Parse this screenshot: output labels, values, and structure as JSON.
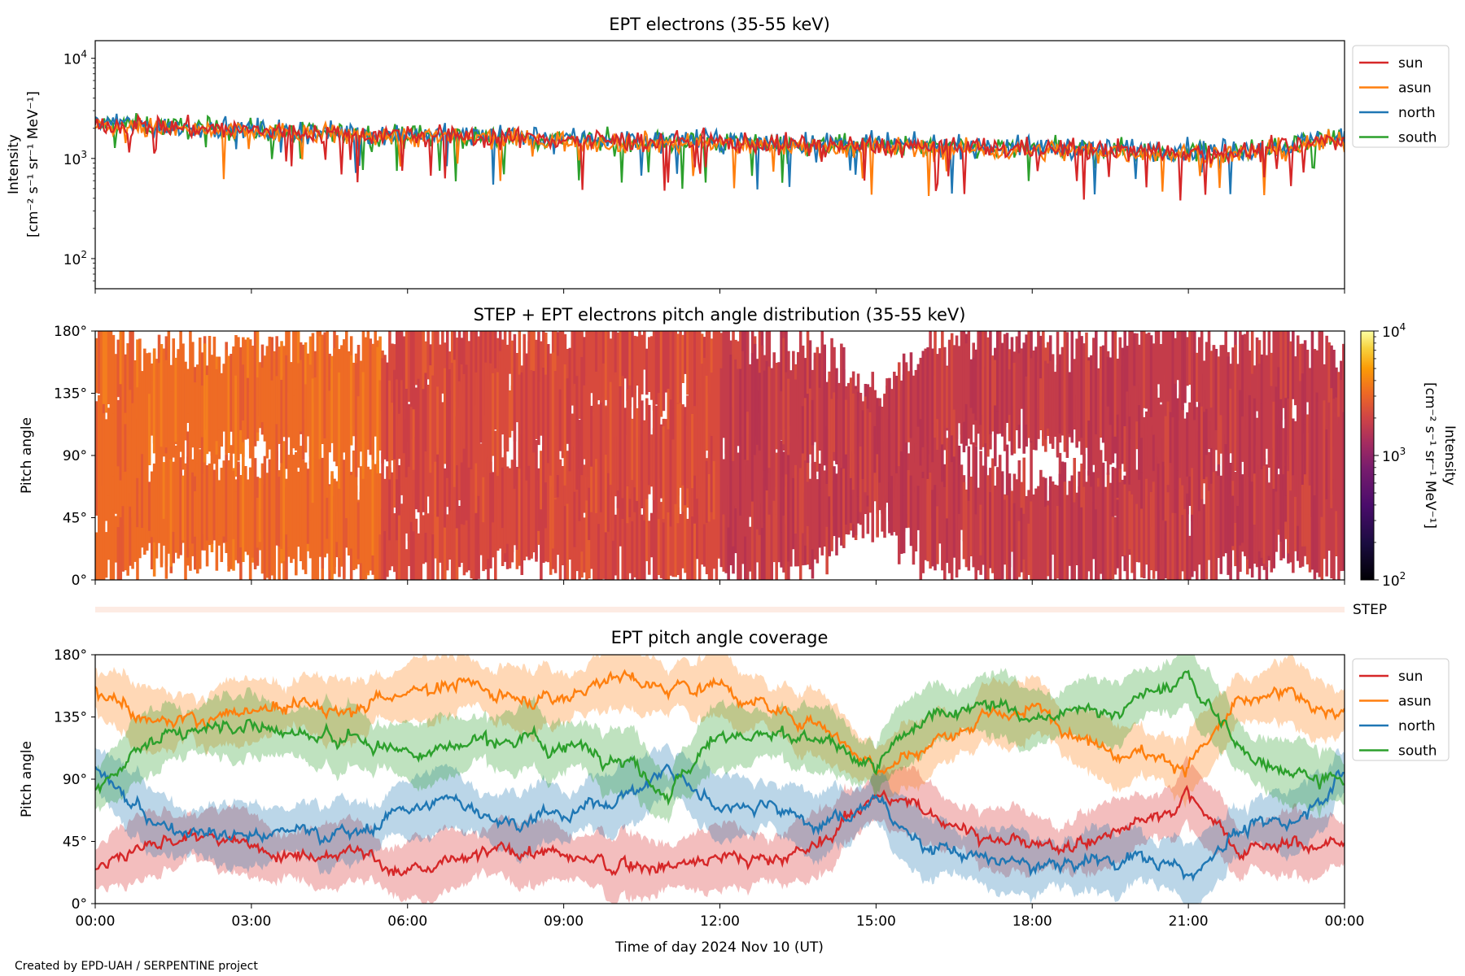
{
  "footer": "Created by EPD-UAH / SERPENTINE project",
  "colors": {
    "sun": "#d62728",
    "asun": "#ff7f0e",
    "north": "#1f77b4",
    "south": "#2ca02c"
  },
  "chart_data": [
    {
      "type": "line",
      "title": "EPT electrons (35-55 keV)",
      "ylabel_line1": "Intensity",
      "ylabel_line2": "[cm⁻² s⁻¹ sr⁻¹ MeV⁻¹]",
      "yscale": "log",
      "ylim": [
        50,
        15000
      ],
      "yticks": [
        {
          "v": 100,
          "base": "10",
          "exp": "2"
        },
        {
          "v": 1000,
          "base": "10",
          "exp": "3"
        },
        {
          "v": 10000,
          "base": "10",
          "exp": "4"
        }
      ],
      "xlim": [
        0,
        24
      ],
      "legend": "outside-right",
      "series": [
        {
          "name": "sun",
          "color": "#d62728",
          "x": [
            0,
            2,
            4,
            6,
            8,
            10,
            12,
            14,
            16,
            18,
            20,
            22,
            23,
            24
          ],
          "y": [
            2200,
            2000,
            1800,
            1700,
            1600,
            1500,
            1450,
            1350,
            1300,
            1250,
            1200,
            1150,
            1300,
            1600
          ]
        },
        {
          "name": "asun",
          "color": "#ff7f0e",
          "x": [
            0,
            2,
            4,
            6,
            8,
            10,
            12,
            14,
            16,
            18,
            20,
            22,
            23,
            24
          ],
          "y": [
            2100,
            1900,
            1750,
            1650,
            1550,
            1450,
            1400,
            1300,
            1250,
            1200,
            1150,
            1100,
            1250,
            1550
          ]
        },
        {
          "name": "north",
          "color": "#1f77b4",
          "x": [
            0,
            2,
            4,
            6,
            8,
            10,
            12,
            14,
            16,
            18,
            20,
            22,
            23,
            24
          ],
          "y": [
            2300,
            2050,
            1850,
            1750,
            1650,
            1550,
            1500,
            1400,
            1350,
            1300,
            1250,
            1200,
            1350,
            1700
          ]
        },
        {
          "name": "south",
          "color": "#2ca02c",
          "x": [
            0,
            2,
            4,
            6,
            8,
            10,
            12,
            14,
            16,
            18,
            20,
            22,
            23,
            24
          ],
          "y": [
            2250,
            2000,
            1800,
            1700,
            1600,
            1500,
            1450,
            1350,
            1300,
            1250,
            1200,
            1150,
            1300,
            1650
          ]
        }
      ]
    },
    {
      "type": "heatmap",
      "title": "STEP + EPT electrons pitch angle distribution (35-55 keV)",
      "ylabel": "Pitch angle",
      "ylim": [
        0,
        180
      ],
      "yticks": [
        "0°",
        "45°",
        "90°",
        "135°",
        "180°"
      ],
      "xlim": [
        0,
        24
      ],
      "colorbar": {
        "label_line1": "Intensity",
        "label_line2": "[cm⁻² s⁻¹ sr⁻¹ MeV⁻¹]",
        "scale": "log",
        "range": [
          100,
          10000
        ],
        "ticks": [
          {
            "v": 100,
            "base": "10",
            "exp": "2"
          },
          {
            "v": 1000,
            "base": "10",
            "exp": "3"
          },
          {
            "v": 10000,
            "base": "10",
            "exp": "4"
          }
        ],
        "colormap": "inferno"
      },
      "step_label": "STEP"
    },
    {
      "type": "line",
      "title": "EPT pitch angle coverage",
      "ylabel": "Pitch angle",
      "xlabel": "Time of day 2024 Nov 10 (UT)",
      "ylim": [
        0,
        180
      ],
      "yticks": [
        "0°",
        "45°",
        "90°",
        "135°",
        "180°"
      ],
      "xlim": [
        0,
        24
      ],
      "xticks": [
        "00:00",
        "03:00",
        "06:00",
        "09:00",
        "12:00",
        "15:00",
        "18:00",
        "21:00",
        "00:00"
      ],
      "legend": "outside-right",
      "series": [
        {
          "name": "sun",
          "color": "#d62728",
          "x": [
            0,
            1,
            2,
            3,
            4,
            5,
            6,
            7,
            8,
            9,
            10,
            11,
            12,
            13,
            14,
            15,
            16,
            17,
            18,
            19,
            20,
            21,
            22,
            23,
            24
          ],
          "y": [
            25,
            45,
            48,
            40,
            38,
            40,
            20,
            30,
            40,
            35,
            25,
            30,
            35,
            30,
            45,
            80,
            65,
            50,
            40,
            45,
            55,
            80,
            40,
            45,
            40
          ]
        },
        {
          "name": "asun",
          "color": "#ff7f0e",
          "x": [
            0,
            1,
            2,
            3,
            4,
            5,
            6,
            7,
            8,
            9,
            10,
            11,
            12,
            13,
            14,
            15,
            16,
            17,
            18,
            19,
            20,
            21,
            22,
            23,
            24
          ],
          "y": [
            160,
            135,
            130,
            140,
            145,
            140,
            155,
            160,
            150,
            150,
            165,
            155,
            160,
            140,
            130,
            100,
            115,
            130,
            140,
            120,
            110,
            100,
            145,
            150,
            135
          ]
        },
        {
          "name": "north",
          "color": "#1f77b4",
          "x": [
            0,
            1,
            2,
            3,
            4,
            5,
            6,
            7,
            8,
            9,
            10,
            11,
            12,
            13,
            14,
            15,
            16,
            17,
            18,
            19,
            20,
            21,
            22,
            23,
            24
          ],
          "y": [
            100,
            60,
            55,
            50,
            55,
            50,
            70,
            75,
            60,
            65,
            75,
            95,
            70,
            75,
            55,
            75,
            40,
            35,
            25,
            30,
            35,
            20,
            55,
            60,
            95
          ]
        },
        {
          "name": "south",
          "color": "#2ca02c",
          "x": [
            0,
            1,
            2,
            3,
            4,
            5,
            6,
            7,
            8,
            9,
            10,
            11,
            12,
            13,
            14,
            15,
            16,
            17,
            18,
            19,
            20,
            21,
            22,
            23,
            24
          ],
          "y": [
            80,
            120,
            125,
            130,
            120,
            120,
            110,
            115,
            120,
            115,
            110,
            80,
            125,
            120,
            115,
            100,
            135,
            150,
            130,
            140,
            145,
            165,
            110,
            100,
            85
          ]
        }
      ]
    }
  ]
}
